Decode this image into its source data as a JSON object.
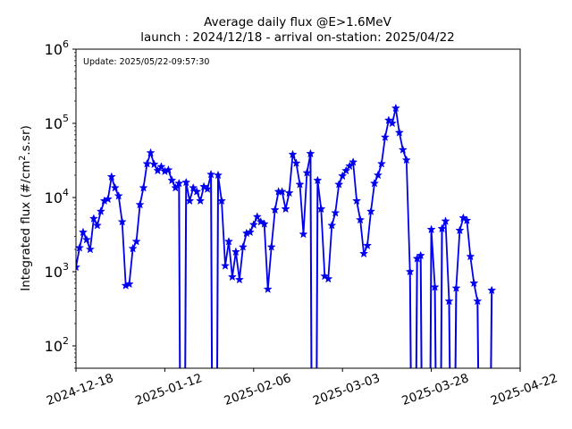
{
  "chart_data": {
    "type": "line",
    "title_line1": "Average daily flux @E>1.6MeV",
    "title_line2": "launch : 2024/12/18 - arrival on-station: 2025/04/22",
    "annotation": "Update: 2025/05/22-09:57:30",
    "xlabel": "",
    "ylabel": "Integrated flux (#/cm",
    "ylabel_sup": "2",
    "ylabel_tail": ".s.sr)",
    "yscale": "log",
    "ylim": [
      50,
      1000000
    ],
    "xlim": [
      "2024-12-18",
      "2025-04-22"
    ],
    "x_ticks": [
      "2024-12-18",
      "2025-01-12",
      "2025-02-06",
      "2025-03-03",
      "2025-03-28",
      "2025-04-22"
    ],
    "y_ticks": [
      {
        "value": 100,
        "base": "10",
        "exp": "2"
      },
      {
        "value": 1000,
        "base": "10",
        "exp": "3"
      },
      {
        "value": 10000,
        "base": "10",
        "exp": "4"
      },
      {
        "value": 100000,
        "base": "10",
        "exp": "5"
      },
      {
        "value": 1000000,
        "base": "10",
        "exp": "6"
      }
    ],
    "grid": false,
    "series": [
      {
        "color": "#0000ee",
        "marker": "star",
        "points": [
          {
            "x": "2024-12-18",
            "y": 1150
          },
          {
            "x": "2024-12-19",
            "y": 2100
          },
          {
            "x": "2024-12-20",
            "y": 3400
          },
          {
            "x": "2024-12-21",
            "y": 2700
          },
          {
            "x": "2024-12-22",
            "y": 2000
          },
          {
            "x": "2024-12-23",
            "y": 5200
          },
          {
            "x": "2024-12-24",
            "y": 4200
          },
          {
            "x": "2024-12-25",
            "y": 6500
          },
          {
            "x": "2024-12-26",
            "y": 9000
          },
          {
            "x": "2024-12-27",
            "y": 9500
          },
          {
            "x": "2024-12-28",
            "y": 19000
          },
          {
            "x": "2024-12-29",
            "y": 13500
          },
          {
            "x": "2024-12-30",
            "y": 10500
          },
          {
            "x": "2024-12-31",
            "y": 4700
          },
          {
            "x": "2025-01-01",
            "y": 650
          },
          {
            "x": "2025-01-02",
            "y": 680
          },
          {
            "x": "2025-01-03",
            "y": 2050
          },
          {
            "x": "2025-01-04",
            "y": 2550
          },
          {
            "x": "2025-01-05",
            "y": 8000
          },
          {
            "x": "2025-01-06",
            "y": 13500
          },
          {
            "x": "2025-01-07",
            "y": 28500
          },
          {
            "x": "2025-01-08",
            "y": 40000
          },
          {
            "x": "2025-01-09",
            "y": 28000
          },
          {
            "x": "2025-01-10",
            "y": 23000
          },
          {
            "x": "2025-01-11",
            "y": 26000
          },
          {
            "x": "2025-01-12",
            "y": 22500
          },
          {
            "x": "2025-01-13",
            "y": 23500
          },
          {
            "x": "2025-01-14",
            "y": 17000
          },
          {
            "x": "2025-01-15",
            "y": 13500
          },
          {
            "x": "2025-01-16",
            "y": 15500
          },
          {
            "x": "2025-01-17",
            "y": null
          },
          {
            "x": "2025-01-18",
            "y": 16000
          },
          {
            "x": "2025-01-19",
            "y": 9000
          },
          {
            "x": "2025-01-20",
            "y": 13500
          },
          {
            "x": "2025-01-21",
            "y": 12000
          },
          {
            "x": "2025-01-22",
            "y": 9000
          },
          {
            "x": "2025-01-23",
            "y": 14000
          },
          {
            "x": "2025-01-24",
            "y": 13000
          },
          {
            "x": "2025-01-25",
            "y": 20500
          },
          {
            "x": "2025-01-26",
            "y": null
          },
          {
            "x": "2025-01-27",
            "y": 20000
          },
          {
            "x": "2025-01-28",
            "y": 9000
          },
          {
            "x": "2025-01-29",
            "y": 1200
          },
          {
            "x": "2025-01-30",
            "y": 2550
          },
          {
            "x": "2025-01-31",
            "y": 850
          },
          {
            "x": "2025-02-01",
            "y": 1850
          },
          {
            "x": "2025-02-02",
            "y": 780
          },
          {
            "x": "2025-02-03",
            "y": 2150
          },
          {
            "x": "2025-02-04",
            "y": 3300
          },
          {
            "x": "2025-02-05",
            "y": 3400
          },
          {
            "x": "2025-02-06",
            "y": 4300
          },
          {
            "x": "2025-02-07",
            "y": 5500
          },
          {
            "x": "2025-02-08",
            "y": 4700
          },
          {
            "x": "2025-02-09",
            "y": 4400
          },
          {
            "x": "2025-02-10",
            "y": 580
          },
          {
            "x": "2025-02-11",
            "y": 2150
          },
          {
            "x": "2025-02-12",
            "y": 6800
          },
          {
            "x": "2025-02-13",
            "y": 12000
          },
          {
            "x": "2025-02-14",
            "y": 12000
          },
          {
            "x": "2025-02-15",
            "y": 7000
          },
          {
            "x": "2025-02-16",
            "y": 11500
          },
          {
            "x": "2025-02-17",
            "y": 38000
          },
          {
            "x": "2025-02-18",
            "y": 29000
          },
          {
            "x": "2025-02-19",
            "y": 15000
          },
          {
            "x": "2025-02-20",
            "y": 3200
          },
          {
            "x": "2025-02-21",
            "y": 21500
          },
          {
            "x": "2025-02-22",
            "y": 39000
          },
          {
            "x": "2025-02-23",
            "y": null
          },
          {
            "x": "2025-02-24",
            "y": 17000
          },
          {
            "x": "2025-02-25",
            "y": 7000
          },
          {
            "x": "2025-02-26",
            "y": 870
          },
          {
            "x": "2025-02-27",
            "y": 800
          },
          {
            "x": "2025-02-28",
            "y": 4200
          },
          {
            "x": "2025-03-01",
            "y": 6200
          },
          {
            "x": "2025-03-02",
            "y": 15000
          },
          {
            "x": "2025-03-03",
            "y": 19500
          },
          {
            "x": "2025-03-04",
            "y": 23000
          },
          {
            "x": "2025-03-05",
            "y": 26500
          },
          {
            "x": "2025-03-06",
            "y": 30000
          },
          {
            "x": "2025-03-07",
            "y": 9000
          },
          {
            "x": "2025-03-08",
            "y": 5000
          },
          {
            "x": "2025-03-09",
            "y": 1750
          },
          {
            "x": "2025-03-10",
            "y": 2250
          },
          {
            "x": "2025-03-11",
            "y": 6500
          },
          {
            "x": "2025-03-12",
            "y": 15500
          },
          {
            "x": "2025-03-13",
            "y": 20000
          },
          {
            "x": "2025-03-14",
            "y": 28500
          },
          {
            "x": "2025-03-15",
            "y": 65000
          },
          {
            "x": "2025-03-16",
            "y": 110000
          },
          {
            "x": "2025-03-17",
            "y": 100000
          },
          {
            "x": "2025-03-18",
            "y": 160000
          },
          {
            "x": "2025-03-19",
            "y": 75000
          },
          {
            "x": "2025-03-20",
            "y": 44000
          },
          {
            "x": "2025-03-21",
            "y": 32000
          },
          {
            "x": "2025-03-22",
            "y": 1000
          },
          {
            "x": "2025-03-23",
            "y": null
          },
          {
            "x": "2025-03-24",
            "y": 1500
          },
          {
            "x": "2025-03-25",
            "y": 1650
          },
          {
            "x": "2025-03-26",
            "y": null
          },
          {
            "x": "2025-03-27",
            "y": null
          },
          {
            "x": "2025-03-28",
            "y": 3700
          },
          {
            "x": "2025-03-29",
            "y": 620
          },
          {
            "x": "2025-03-30",
            "y": null
          },
          {
            "x": "2025-03-31",
            "y": 3800
          },
          {
            "x": "2025-04-01",
            "y": 4800
          },
          {
            "x": "2025-04-02",
            "y": 400
          },
          {
            "x": "2025-04-03",
            "y": null
          },
          {
            "x": "2025-04-04",
            "y": 600
          },
          {
            "x": "2025-04-05",
            "y": 3600
          },
          {
            "x": "2025-04-06",
            "y": 5300
          },
          {
            "x": "2025-04-07",
            "y": 4900
          },
          {
            "x": "2025-04-08",
            "y": 1600
          },
          {
            "x": "2025-04-09",
            "y": 700
          },
          {
            "x": "2025-04-10",
            "y": 400
          },
          {
            "x": "2025-04-11",
            "y": null
          },
          {
            "x": "2025-04-12",
            "y": null
          },
          {
            "x": "2025-04-13",
            "y": null
          },
          {
            "x": "2025-04-14",
            "y": 560
          }
        ]
      }
    ]
  }
}
